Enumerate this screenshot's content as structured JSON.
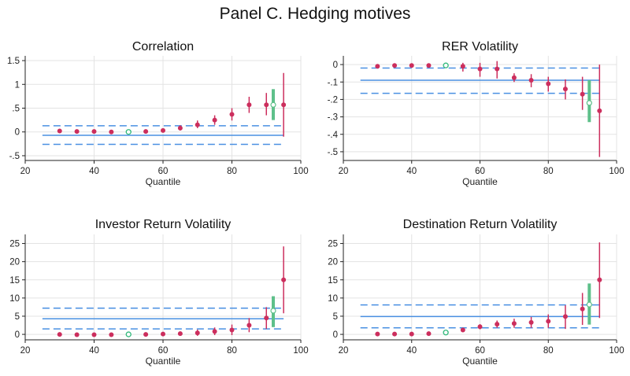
{
  "figure": {
    "title": "Panel C. Hedging motives"
  },
  "colors": {
    "point": "#cc2e5d",
    "ci": "#cc2e5d",
    "hollow": "#2fb87a",
    "bar": "#5ec08a",
    "line": "#4a90e2",
    "grid": "#e3e3e3"
  },
  "chart_data": [
    {
      "type": "scatter",
      "title": "Correlation",
      "xlabel": "Quantile",
      "ylabel": "",
      "xlim": [
        20,
        100
      ],
      "ylim": [
        -0.6,
        1.6
      ],
      "xticks": [
        20,
        40,
        60,
        80,
        100
      ],
      "yticks": [
        -0.5,
        0,
        0.5,
        1,
        1.5
      ],
      "ytick_labels": [
        "-.5",
        "0",
        ".5",
        "1",
        "1.5"
      ],
      "grid": true,
      "hline": {
        "value": -0.07,
        "x_range": [
          25,
          95
        ]
      },
      "hline_dashed": [
        -0.26,
        0.13
      ],
      "points": [
        {
          "x": 30,
          "y": 0.02,
          "lo": 0.0,
          "hi": 0.04
        },
        {
          "x": 35,
          "y": 0.01,
          "lo": -0.01,
          "hi": 0.03
        },
        {
          "x": 40,
          "y": 0.01,
          "lo": -0.01,
          "hi": 0.03
        },
        {
          "x": 45,
          "y": 0.0,
          "lo": -0.02,
          "hi": 0.02
        },
        {
          "x": 55,
          "y": 0.01,
          "lo": -0.01,
          "hi": 0.03
        },
        {
          "x": 60,
          "y": 0.03,
          "lo": 0.0,
          "hi": 0.07
        },
        {
          "x": 65,
          "y": 0.08,
          "lo": 0.03,
          "hi": 0.14
        },
        {
          "x": 70,
          "y": 0.15,
          "lo": 0.08,
          "hi": 0.24
        },
        {
          "x": 75,
          "y": 0.25,
          "lo": 0.15,
          "hi": 0.35
        },
        {
          "x": 80,
          "y": 0.37,
          "lo": 0.24,
          "hi": 0.5
        },
        {
          "x": 85,
          "y": 0.57,
          "lo": 0.4,
          "hi": 0.74
        },
        {
          "x": 90,
          "y": 0.57,
          "lo": 0.35,
          "hi": 0.82
        },
        {
          "x": 95,
          "y": 0.57,
          "lo": -0.1,
          "hi": 1.24
        }
      ],
      "reference_point": {
        "x": 50,
        "y": 0.0
      },
      "summary": {
        "x": 92,
        "y": 0.57,
        "lo": 0.25,
        "hi": 0.9
      }
    },
    {
      "type": "scatter",
      "title": "RER Volatility",
      "xlabel": "Quantile",
      "ylabel": "",
      "xlim": [
        20,
        100
      ],
      "ylim": [
        -0.55,
        0.05
      ],
      "xticks": [
        20,
        40,
        60,
        80,
        100
      ],
      "yticks": [
        0,
        -0.1,
        -0.2,
        -0.3,
        -0.4,
        -0.5
      ],
      "ytick_labels": [
        "0",
        "-.1",
        "-.2",
        "-.3",
        "-.4",
        "-.5"
      ],
      "grid": true,
      "hline": {
        "value": -0.09,
        "x_range": [
          25,
          95
        ]
      },
      "hline_dashed": [
        -0.02,
        -0.165
      ],
      "points": [
        {
          "x": 30,
          "y": -0.01,
          "lo": -0.015,
          "hi": -0.005
        },
        {
          "x": 35,
          "y": -0.005,
          "lo": -0.01,
          "hi": 0.0
        },
        {
          "x": 40,
          "y": -0.005,
          "lo": -0.01,
          "hi": 0.0
        },
        {
          "x": 45,
          "y": -0.005,
          "lo": -0.01,
          "hi": 0.0
        },
        {
          "x": 55,
          "y": -0.01,
          "lo": -0.04,
          "hi": 0.01
        },
        {
          "x": 60,
          "y": -0.025,
          "lo": -0.07,
          "hi": 0.01
        },
        {
          "x": 65,
          "y": -0.025,
          "lo": -0.08,
          "hi": 0.02
        },
        {
          "x": 70,
          "y": -0.075,
          "lo": -0.1,
          "hi": -0.05
        },
        {
          "x": 75,
          "y": -0.09,
          "lo": -0.13,
          "hi": -0.055
        },
        {
          "x": 80,
          "y": -0.11,
          "lo": -0.155,
          "hi": -0.07
        },
        {
          "x": 85,
          "y": -0.14,
          "lo": -0.2,
          "hi": -0.085
        },
        {
          "x": 90,
          "y": -0.17,
          "lo": -0.26,
          "hi": -0.07
        },
        {
          "x": 95,
          "y": -0.265,
          "lo": -0.53,
          "hi": 0.0
        }
      ],
      "reference_point": {
        "x": 50,
        "y": -0.005
      },
      "summary": {
        "x": 92,
        "y": -0.22,
        "lo": -0.33,
        "hi": -0.09
      }
    },
    {
      "type": "scatter",
      "title": "Investor Return Volatility",
      "xlabel": "Quantile",
      "ylabel": "",
      "xlim": [
        20,
        100
      ],
      "ylim": [
        -1.5,
        27.5
      ],
      "xticks": [
        20,
        40,
        60,
        80,
        100
      ],
      "yticks": [
        0,
        5,
        10,
        15,
        20,
        25
      ],
      "ytick_labels": [
        "0",
        "5",
        "10",
        "15",
        "20",
        "25"
      ],
      "grid": true,
      "hline": {
        "value": 4.3,
        "x_range": [
          25,
          95
        ]
      },
      "hline_dashed": [
        1.5,
        7.2
      ],
      "points": [
        {
          "x": 30,
          "y": 0.0,
          "lo": -0.1,
          "hi": 0.1
        },
        {
          "x": 35,
          "y": -0.1,
          "lo": -0.2,
          "hi": 0.0
        },
        {
          "x": 40,
          "y": -0.1,
          "lo": -0.2,
          "hi": 0.0
        },
        {
          "x": 45,
          "y": -0.1,
          "lo": -0.2,
          "hi": 0.0
        },
        {
          "x": 55,
          "y": 0.0,
          "lo": -0.2,
          "hi": 0.2
        },
        {
          "x": 60,
          "y": 0.1,
          "lo": -0.2,
          "hi": 0.4
        },
        {
          "x": 65,
          "y": 0.2,
          "lo": -0.3,
          "hi": 0.7
        },
        {
          "x": 70,
          "y": 0.4,
          "lo": -0.4,
          "hi": 1.3
        },
        {
          "x": 75,
          "y": 0.8,
          "lo": -0.2,
          "hi": 1.9
        },
        {
          "x": 80,
          "y": 1.2,
          "lo": -0.2,
          "hi": 2.7
        },
        {
          "x": 85,
          "y": 2.5,
          "lo": 0.6,
          "hi": 4.5
        },
        {
          "x": 90,
          "y": 4.5,
          "lo": 1.5,
          "hi": 7.5
        },
        {
          "x": 95,
          "y": 15.0,
          "lo": 5.8,
          "hi": 24.2
        }
      ],
      "reference_point": {
        "x": 50,
        "y": 0.0
      },
      "summary": {
        "x": 92,
        "y": 6.5,
        "lo": 2.0,
        "hi": 10.5
      }
    },
    {
      "type": "scatter",
      "title": "Destination Return Volatility",
      "xlabel": "Quantile",
      "ylabel": "",
      "xlim": [
        20,
        100
      ],
      "ylim": [
        -1.5,
        27.5
      ],
      "xticks": [
        20,
        40,
        60,
        80,
        100
      ],
      "yticks": [
        0,
        5,
        10,
        15,
        20,
        25
      ],
      "ytick_labels": [
        "0",
        "5",
        "10",
        "15",
        "20",
        "25"
      ],
      "grid": true,
      "hline": {
        "value": 4.9,
        "x_range": [
          25,
          95
        ]
      },
      "hline_dashed": [
        1.8,
        8.1
      ],
      "points": [
        {
          "x": 30,
          "y": 0.1,
          "lo": 0.0,
          "hi": 0.2
        },
        {
          "x": 35,
          "y": 0.1,
          "lo": 0.0,
          "hi": 0.2
        },
        {
          "x": 40,
          "y": 0.1,
          "lo": 0.0,
          "hi": 0.2
        },
        {
          "x": 45,
          "y": 0.2,
          "lo": 0.0,
          "hi": 0.4
        },
        {
          "x": 55,
          "y": 1.2,
          "lo": 0.7,
          "hi": 1.7
        },
        {
          "x": 60,
          "y": 2.1,
          "lo": 1.4,
          "hi": 2.8
        },
        {
          "x": 65,
          "y": 2.8,
          "lo": 1.8,
          "hi": 3.8
        },
        {
          "x": 70,
          "y": 3.0,
          "lo": 1.8,
          "hi": 4.3
        },
        {
          "x": 75,
          "y": 3.3,
          "lo": 1.8,
          "hi": 4.8
        },
        {
          "x": 80,
          "y": 3.6,
          "lo": 1.8,
          "hi": 5.5
        },
        {
          "x": 85,
          "y": 4.9,
          "lo": 1.5,
          "hi": 8.0
        },
        {
          "x": 90,
          "y": 7.0,
          "lo": 2.6,
          "hi": 11.4
        },
        {
          "x": 95,
          "y": 15.0,
          "lo": 4.5,
          "hi": 25.3
        }
      ],
      "reference_point": {
        "x": 50,
        "y": 0.5
      },
      "summary": {
        "x": 92,
        "y": 8.2,
        "lo": 2.7,
        "hi": 14.0
      }
    }
  ]
}
